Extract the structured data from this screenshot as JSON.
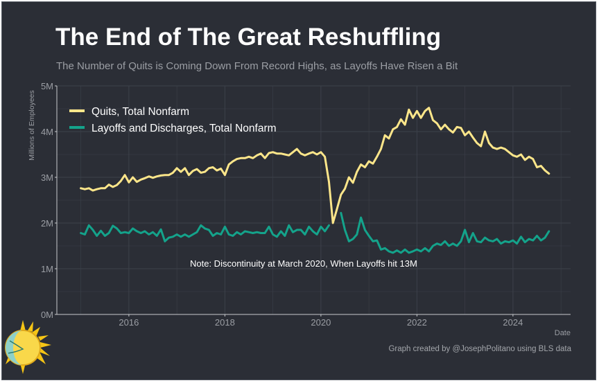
{
  "title": "The End of The Great Reshuffling",
  "subtitle": "The Number of Quits is Coming Down From Record Highs, as Layoffs Have Risen a Bit",
  "credit": "Graph created by @JosephPolitano using BLS data",
  "colors": {
    "background": "#2b2e36",
    "quits": "#fde68a",
    "layoffs": "#14a38b",
    "grid": "#3d414a",
    "axis_text": "#9b9ea4"
  },
  "chart_data": {
    "type": "line",
    "xlabel": "Date",
    "ylabel": "Millions of Employees",
    "xlim": [
      2014.5,
      2025.2
    ],
    "ylim": [
      0,
      5
    ],
    "y_ticks": [
      0,
      1,
      2,
      3,
      4,
      5
    ],
    "y_tick_labels": [
      "0M",
      "1M",
      "2M",
      "3M",
      "4M",
      "5M"
    ],
    "x_ticks": [
      2016,
      2018,
      2020,
      2022,
      2024
    ],
    "x_tick_labels": [
      "2016",
      "2018",
      "2020",
      "2022",
      "2024"
    ],
    "grid": true,
    "legend_position": "top-left",
    "annotation": "Note: Discontinuity at March 2020, When Layoffs hit 13M",
    "series": [
      {
        "name": "Quits, Total Nonfarm",
        "color": "#fde68a",
        "points": [
          [
            2015.0,
            2.76
          ],
          [
            2015.083,
            2.74
          ],
          [
            2015.167,
            2.76
          ],
          [
            2015.25,
            2.71
          ],
          [
            2015.333,
            2.74
          ],
          [
            2015.417,
            2.76
          ],
          [
            2015.5,
            2.76
          ],
          [
            2015.583,
            2.84
          ],
          [
            2015.667,
            2.79
          ],
          [
            2015.75,
            2.83
          ],
          [
            2015.833,
            2.92
          ],
          [
            2015.917,
            3.05
          ],
          [
            2016.0,
            2.89
          ],
          [
            2016.083,
            3.0
          ],
          [
            2016.167,
            2.9
          ],
          [
            2016.25,
            2.95
          ],
          [
            2016.333,
            2.98
          ],
          [
            2016.417,
            3.02
          ],
          [
            2016.5,
            2.99
          ],
          [
            2016.583,
            3.02
          ],
          [
            2016.667,
            3.04
          ],
          [
            2016.75,
            3.05
          ],
          [
            2016.833,
            3.05
          ],
          [
            2016.917,
            3.1
          ],
          [
            2017.0,
            3.2
          ],
          [
            2017.083,
            3.12
          ],
          [
            2017.167,
            3.2
          ],
          [
            2017.25,
            3.05
          ],
          [
            2017.333,
            3.14
          ],
          [
            2017.417,
            3.18
          ],
          [
            2017.5,
            3.1
          ],
          [
            2017.583,
            3.12
          ],
          [
            2017.667,
            3.2
          ],
          [
            2017.75,
            3.22
          ],
          [
            2017.833,
            3.15
          ],
          [
            2017.917,
            3.19
          ],
          [
            2018.0,
            3.05
          ],
          [
            2018.083,
            3.28
          ],
          [
            2018.167,
            3.35
          ],
          [
            2018.25,
            3.4
          ],
          [
            2018.333,
            3.42
          ],
          [
            2018.417,
            3.42
          ],
          [
            2018.5,
            3.45
          ],
          [
            2018.583,
            3.42
          ],
          [
            2018.667,
            3.48
          ],
          [
            2018.75,
            3.52
          ],
          [
            2018.833,
            3.42
          ],
          [
            2018.917,
            3.53
          ],
          [
            2019.0,
            3.55
          ],
          [
            2019.083,
            3.52
          ],
          [
            2019.167,
            3.52
          ],
          [
            2019.25,
            3.5
          ],
          [
            2019.333,
            3.48
          ],
          [
            2019.417,
            3.55
          ],
          [
            2019.5,
            3.62
          ],
          [
            2019.583,
            3.52
          ],
          [
            2019.667,
            3.48
          ],
          [
            2019.75,
            3.52
          ],
          [
            2019.833,
            3.55
          ],
          [
            2019.917,
            3.5
          ],
          [
            2020.0,
            3.55
          ],
          [
            2020.083,
            3.45
          ],
          [
            2020.167,
            2.9
          ],
          [
            2020.25,
            2.0
          ],
          [
            2020.333,
            2.3
          ],
          [
            2020.417,
            2.62
          ],
          [
            2020.5,
            2.75
          ],
          [
            2020.583,
            3.0
          ],
          [
            2020.667,
            2.88
          ],
          [
            2020.75,
            3.12
          ],
          [
            2020.833,
            3.28
          ],
          [
            2020.917,
            3.22
          ],
          [
            2021.0,
            3.35
          ],
          [
            2021.083,
            3.3
          ],
          [
            2021.167,
            3.45
          ],
          [
            2021.25,
            3.62
          ],
          [
            2021.333,
            3.92
          ],
          [
            2021.417,
            3.85
          ],
          [
            2021.5,
            4.05
          ],
          [
            2021.583,
            4.1
          ],
          [
            2021.667,
            4.27
          ],
          [
            2021.75,
            4.15
          ],
          [
            2021.833,
            4.48
          ],
          [
            2021.917,
            4.3
          ],
          [
            2022.0,
            4.45
          ],
          [
            2022.083,
            4.3
          ],
          [
            2022.167,
            4.45
          ],
          [
            2022.25,
            4.52
          ],
          [
            2022.333,
            4.25
          ],
          [
            2022.417,
            4.18
          ],
          [
            2022.5,
            4.05
          ],
          [
            2022.583,
            4.15
          ],
          [
            2022.667,
            4.05
          ],
          [
            2022.75,
            3.98
          ],
          [
            2022.833,
            4.1
          ],
          [
            2022.917,
            4.08
          ],
          [
            2023.0,
            3.92
          ],
          [
            2023.083,
            4.0
          ],
          [
            2023.167,
            3.87
          ],
          [
            2023.25,
            3.75
          ],
          [
            2023.333,
            3.68
          ],
          [
            2023.417,
            4.0
          ],
          [
            2023.5,
            3.75
          ],
          [
            2023.583,
            3.65
          ],
          [
            2023.667,
            3.62
          ],
          [
            2023.75,
            3.65
          ],
          [
            2023.833,
            3.62
          ],
          [
            2023.917,
            3.55
          ],
          [
            2024.0,
            3.48
          ],
          [
            2024.083,
            3.45
          ],
          [
            2024.167,
            3.5
          ],
          [
            2024.25,
            3.38
          ],
          [
            2024.333,
            3.45
          ],
          [
            2024.417,
            3.4
          ],
          [
            2024.5,
            3.22
          ],
          [
            2024.583,
            3.25
          ],
          [
            2024.667,
            3.15
          ],
          [
            2024.75,
            3.08
          ]
        ]
      },
      {
        "name": "Layoffs and Discharges, Total Nonfarm",
        "color": "#14a38b",
        "points": [
          [
            2015.0,
            1.78
          ],
          [
            2015.083,
            1.75
          ],
          [
            2015.167,
            1.95
          ],
          [
            2015.25,
            1.85
          ],
          [
            2015.333,
            1.72
          ],
          [
            2015.417,
            1.83
          ],
          [
            2015.5,
            1.72
          ],
          [
            2015.583,
            1.78
          ],
          [
            2015.667,
            1.94
          ],
          [
            2015.75,
            1.88
          ],
          [
            2015.833,
            1.78
          ],
          [
            2015.917,
            1.8
          ],
          [
            2016.0,
            1.78
          ],
          [
            2016.083,
            1.88
          ],
          [
            2016.167,
            1.82
          ],
          [
            2016.25,
            1.78
          ],
          [
            2016.333,
            1.82
          ],
          [
            2016.417,
            1.75
          ],
          [
            2016.5,
            1.8
          ],
          [
            2016.583,
            1.72
          ],
          [
            2016.667,
            1.86
          ],
          [
            2016.75,
            1.6
          ],
          [
            2016.833,
            1.68
          ],
          [
            2016.917,
            1.7
          ],
          [
            2017.0,
            1.75
          ],
          [
            2017.083,
            1.7
          ],
          [
            2017.167,
            1.75
          ],
          [
            2017.25,
            1.7
          ],
          [
            2017.333,
            1.75
          ],
          [
            2017.417,
            1.8
          ],
          [
            2017.5,
            1.95
          ],
          [
            2017.583,
            1.88
          ],
          [
            2017.667,
            1.85
          ],
          [
            2017.75,
            1.72
          ],
          [
            2017.833,
            1.78
          ],
          [
            2017.917,
            1.75
          ],
          [
            2018.0,
            1.92
          ],
          [
            2018.083,
            1.75
          ],
          [
            2018.167,
            1.72
          ],
          [
            2018.25,
            1.8
          ],
          [
            2018.333,
            1.75
          ],
          [
            2018.417,
            1.82
          ],
          [
            2018.5,
            1.8
          ],
          [
            2018.583,
            1.78
          ],
          [
            2018.667,
            1.8
          ],
          [
            2018.75,
            1.78
          ],
          [
            2018.833,
            1.78
          ],
          [
            2018.917,
            1.92
          ],
          [
            2019.0,
            1.75
          ],
          [
            2019.083,
            1.7
          ],
          [
            2019.167,
            1.82
          ],
          [
            2019.25,
            1.72
          ],
          [
            2019.333,
            1.95
          ],
          [
            2019.417,
            1.8
          ],
          [
            2019.5,
            1.85
          ],
          [
            2019.583,
            1.85
          ],
          [
            2019.667,
            1.75
          ],
          [
            2019.75,
            1.92
          ],
          [
            2019.833,
            1.82
          ],
          [
            2019.917,
            1.75
          ],
          [
            2020.0,
            1.92
          ],
          [
            2020.083,
            1.82
          ],
          [
            2020.167,
            1.95
          ],
          [
            2020.417,
            2.22
          ],
          [
            2020.5,
            1.85
          ],
          [
            2020.583,
            1.6
          ],
          [
            2020.667,
            1.65
          ],
          [
            2020.75,
            1.75
          ],
          [
            2020.833,
            2.12
          ],
          [
            2020.917,
            1.85
          ],
          [
            2021.0,
            1.72
          ],
          [
            2021.083,
            1.6
          ],
          [
            2021.167,
            1.62
          ],
          [
            2021.25,
            1.42
          ],
          [
            2021.333,
            1.45
          ],
          [
            2021.417,
            1.38
          ],
          [
            2021.5,
            1.35
          ],
          [
            2021.583,
            1.4
          ],
          [
            2021.667,
            1.35
          ],
          [
            2021.75,
            1.42
          ],
          [
            2021.833,
            1.35
          ],
          [
            2021.917,
            1.38
          ],
          [
            2022.0,
            1.42
          ],
          [
            2022.083,
            1.38
          ],
          [
            2022.167,
            1.45
          ],
          [
            2022.25,
            1.38
          ],
          [
            2022.333,
            1.5
          ],
          [
            2022.417,
            1.55
          ],
          [
            2022.5,
            1.52
          ],
          [
            2022.583,
            1.6
          ],
          [
            2022.667,
            1.5
          ],
          [
            2022.75,
            1.55
          ],
          [
            2022.833,
            1.5
          ],
          [
            2022.917,
            1.6
          ],
          [
            2023.0,
            1.85
          ],
          [
            2023.083,
            1.58
          ],
          [
            2023.167,
            1.78
          ],
          [
            2023.25,
            1.6
          ],
          [
            2023.333,
            1.58
          ],
          [
            2023.417,
            1.68
          ],
          [
            2023.5,
            1.62
          ],
          [
            2023.583,
            1.6
          ],
          [
            2023.667,
            1.65
          ],
          [
            2023.75,
            1.55
          ],
          [
            2023.833,
            1.6
          ],
          [
            2023.917,
            1.58
          ],
          [
            2024.0,
            1.62
          ],
          [
            2024.083,
            1.55
          ],
          [
            2024.167,
            1.7
          ],
          [
            2024.25,
            1.58
          ],
          [
            2024.333,
            1.65
          ],
          [
            2024.417,
            1.62
          ],
          [
            2024.5,
            1.72
          ],
          [
            2024.583,
            1.62
          ],
          [
            2024.667,
            1.68
          ],
          [
            2024.75,
            1.82
          ]
        ]
      }
    ]
  }
}
